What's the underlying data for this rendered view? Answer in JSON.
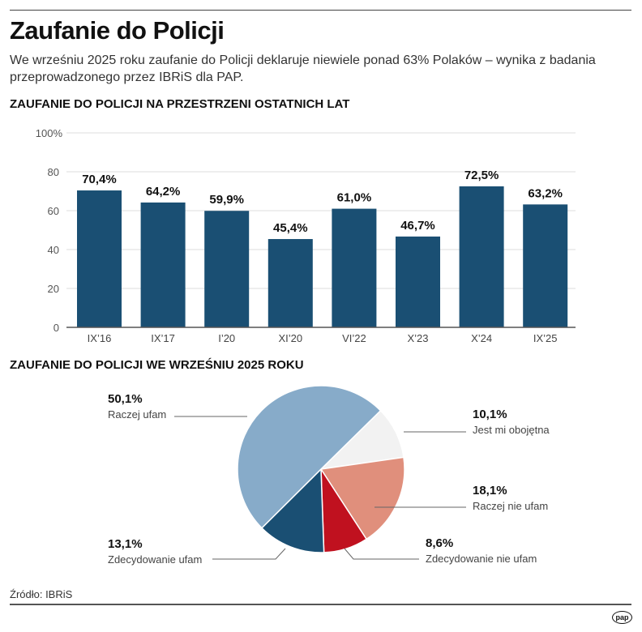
{
  "title": "Zaufanie do Policji",
  "subtitle": "We wrześniu 2025 roku zaufanie do Policji deklaruje niewiele ponad 63% Polaków – wynika z badania przeprowadzonego przez IBRiS dla PAP.",
  "source": "Źródło: IBRiS",
  "logo": "pap",
  "chart_data": [
    {
      "type": "bar",
      "title": "ZAUFANIE DO POLICJI NA PRZESTRZENI OSTATNICH LAT",
      "categories": [
        "IX’16",
        "IX’17",
        "I’20",
        "XI’20",
        "VI’22",
        "X’23",
        "X’24",
        "IX’25"
      ],
      "values": [
        70.4,
        64.2,
        59.9,
        45.4,
        61.0,
        46.7,
        72.5,
        63.2
      ],
      "labels": [
        "70,4%",
        "64,2%",
        "59,9%",
        "45,4%",
        "61,0%",
        "46,7%",
        "72,5%",
        "63,2%"
      ],
      "yticks": [
        "0",
        "20",
        "40",
        "60",
        "80",
        "100%"
      ],
      "ylim": [
        0,
        100
      ],
      "grid": true,
      "color": "#1a4f73"
    },
    {
      "type": "pie",
      "title": "ZAUFANIE DO POLICJI WE WRZEŚNIU 2025 ROKU",
      "slices": [
        {
          "name": "Jest mi obojętna",
          "value": 10.1,
          "label": "10,1%",
          "color": "#f2f2f2"
        },
        {
          "name": "Raczej nie ufam",
          "value": 18.1,
          "label": "18,1%",
          "color": "#e08f7c"
        },
        {
          "name": "Zdecydowanie nie ufam",
          "value": 8.6,
          "label": "8,6%",
          "color": "#c0111f"
        },
        {
          "name": "Zdecydowanie ufam",
          "value": 13.1,
          "label": "13,1%",
          "color": "#1a4f73"
        },
        {
          "name": "Raczej ufam",
          "value": 50.1,
          "label": "50,1%",
          "color": "#87abc9"
        }
      ]
    }
  ]
}
